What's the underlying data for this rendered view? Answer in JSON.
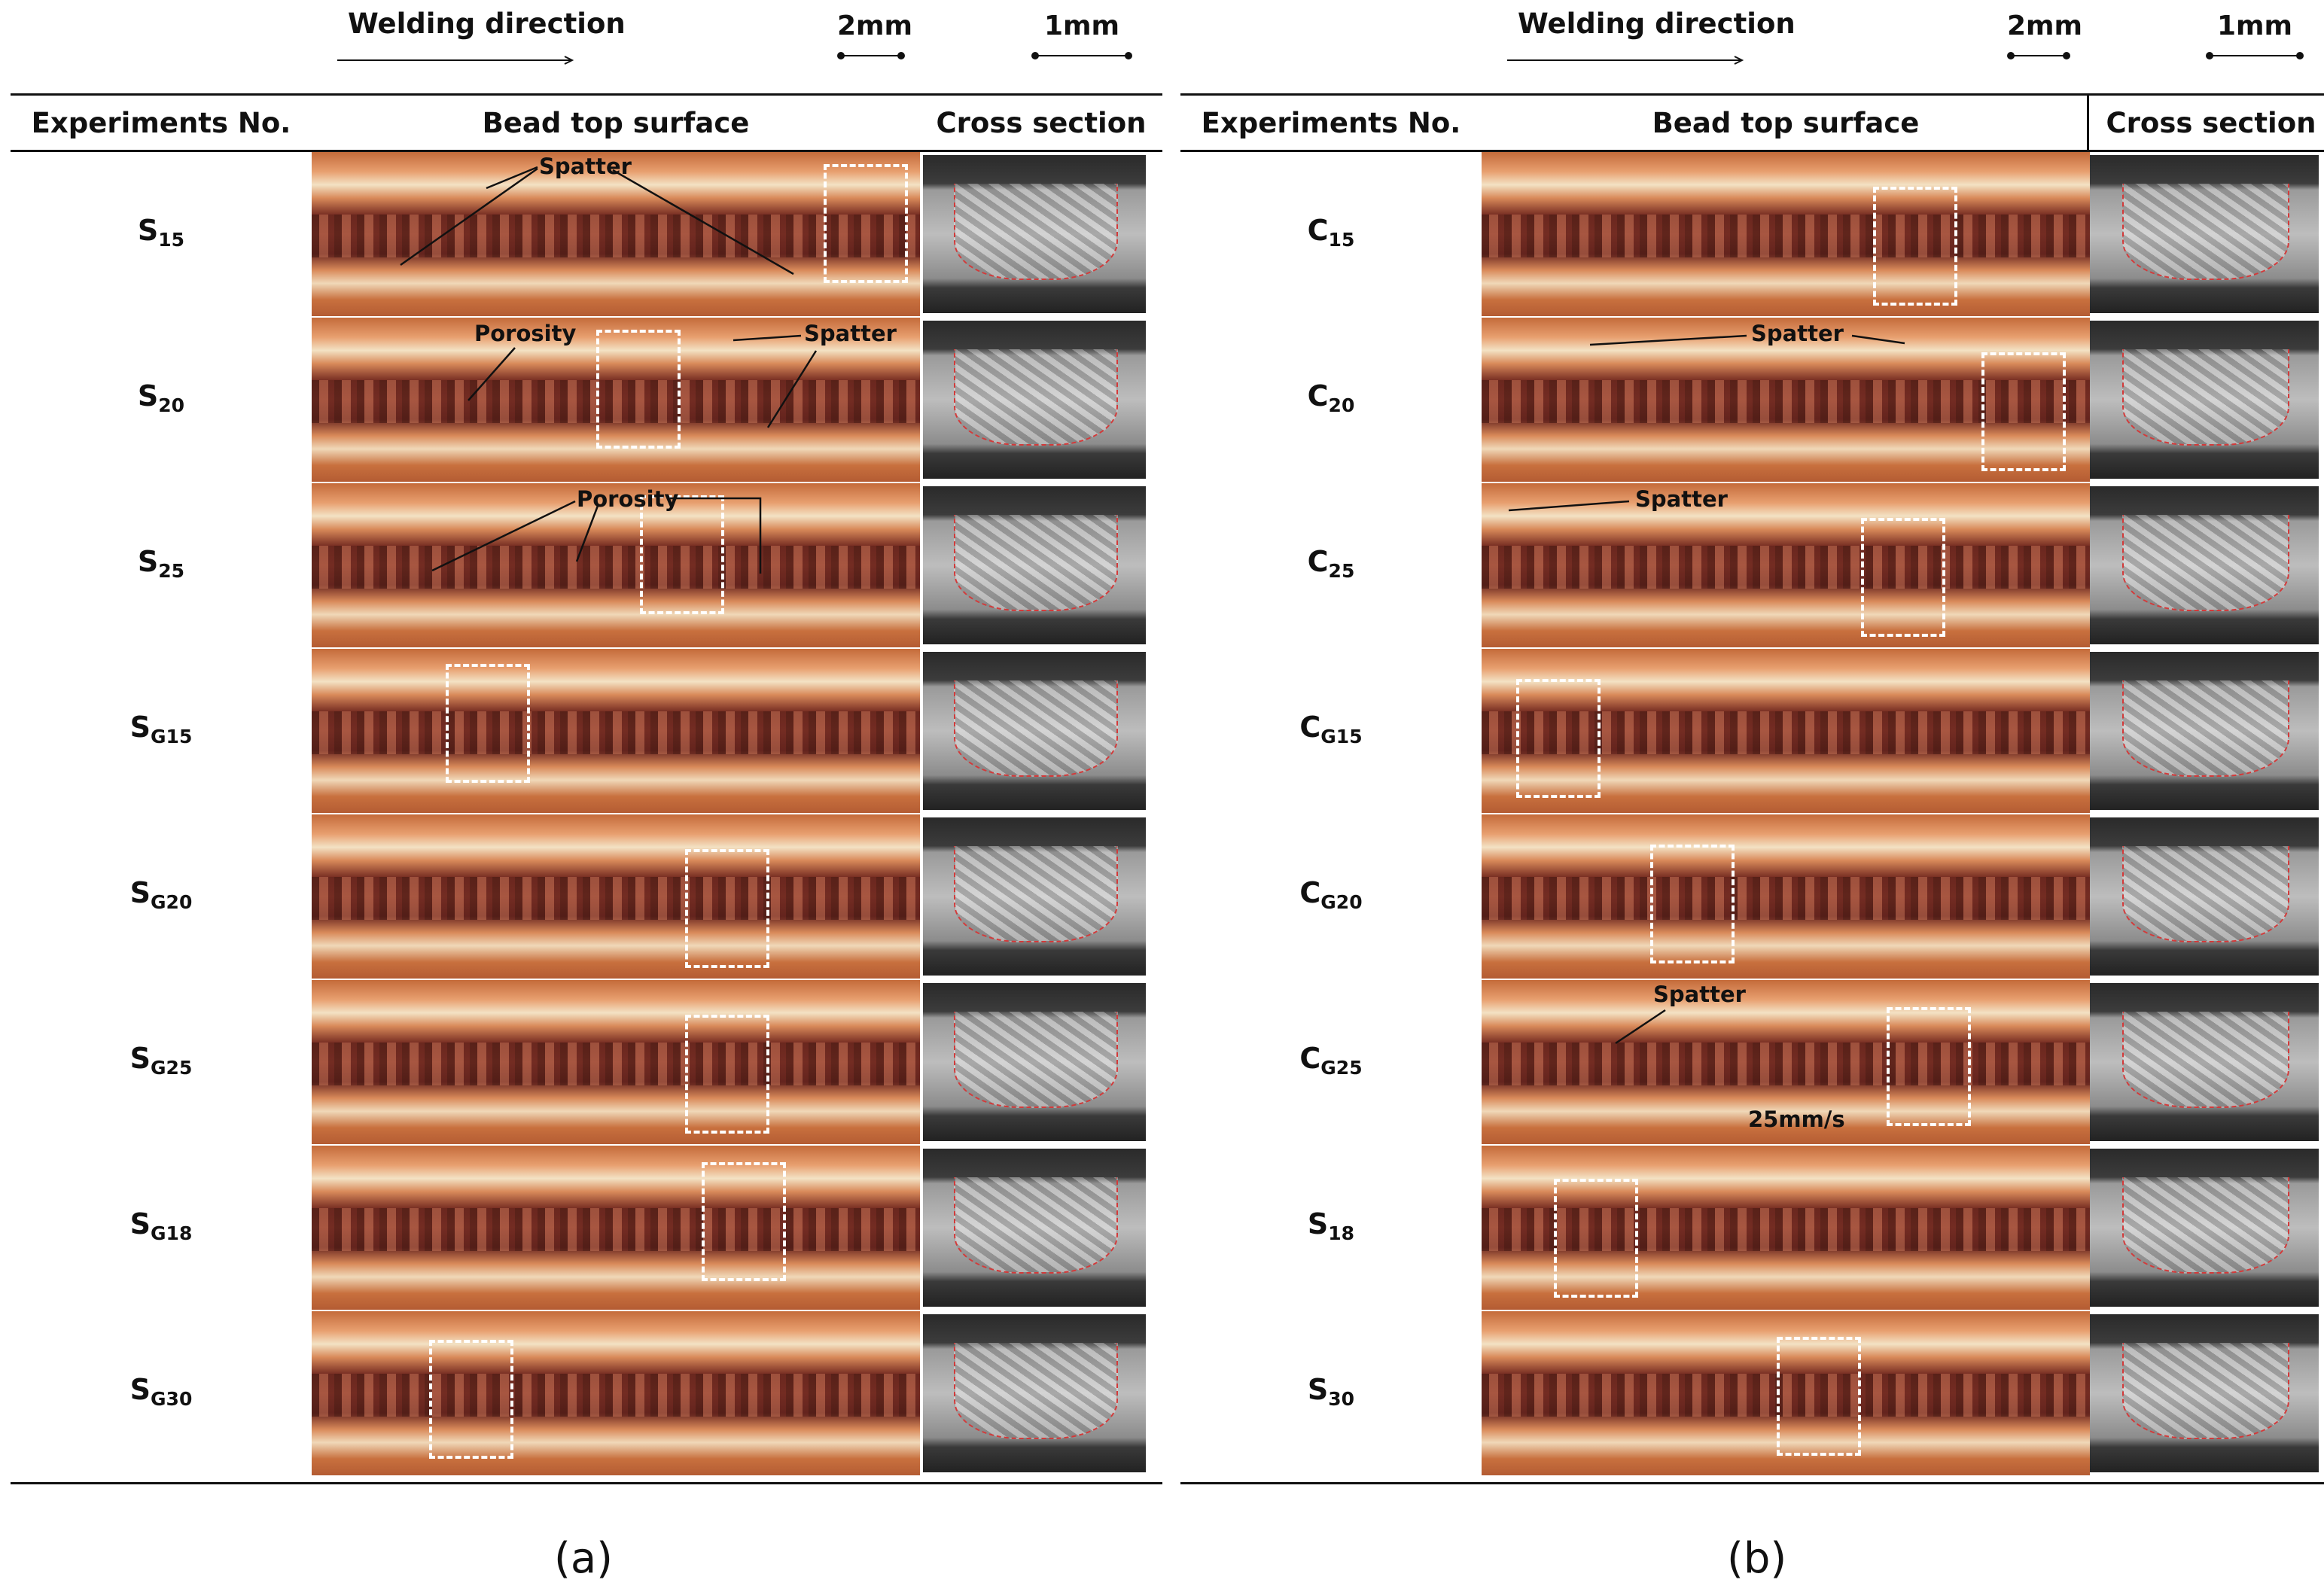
{
  "panels": [
    {
      "welding_direction": "Welding direction",
      "scale_2mm": "2mm",
      "scale_1mm": "1mm",
      "headers": {
        "experiment": "Experiments No.",
        "bead": "Bead top surface",
        "cross": "Cross section"
      },
      "rows": [
        {
          "name": "S",
          "sub": "15",
          "notes": [
            "Spatter"
          ]
        },
        {
          "name": "S",
          "sub": "20",
          "notes": [
            "Porosity",
            "Spatter"
          ]
        },
        {
          "name": "S",
          "sub": "25",
          "notes": [
            "Porosity"
          ]
        },
        {
          "name": "S",
          "sub": "G15",
          "notes": []
        },
        {
          "name": "S",
          "sub": "G20",
          "notes": []
        },
        {
          "name": "S",
          "sub": "G25",
          "notes": []
        },
        {
          "name": "S",
          "sub": "G18",
          "notes": []
        },
        {
          "name": "S",
          "sub": "G30",
          "notes": []
        }
      ],
      "caption": "(a)"
    },
    {
      "welding_direction": "Welding direction",
      "scale_2mm": "2mm",
      "scale_1mm": "1mm",
      "headers": {
        "experiment": "Experiments No.",
        "bead": "Bead top surface",
        "cross": "Cross section"
      },
      "rows": [
        {
          "name": "C",
          "sub": "15",
          "notes": []
        },
        {
          "name": "C",
          "sub": "20",
          "notes": [
            "Spatter"
          ]
        },
        {
          "name": "C",
          "sub": "25",
          "notes": [
            "Spatter"
          ]
        },
        {
          "name": "C",
          "sub": "G15",
          "notes": []
        },
        {
          "name": "C",
          "sub": "G20",
          "notes": []
        },
        {
          "name": "C",
          "sub": "G25",
          "notes": [
            "Spatter",
            "25mm/s"
          ]
        },
        {
          "name": "S",
          "sub": "18",
          "notes": []
        },
        {
          "name": "S",
          "sub": "30",
          "notes": []
        }
      ],
      "caption": "(b)"
    }
  ],
  "colors": {
    "copper": "#c46b3a",
    "bead": "#7a3024",
    "roi_box": "#ffffff",
    "fusion_line": "#d33a3a"
  }
}
